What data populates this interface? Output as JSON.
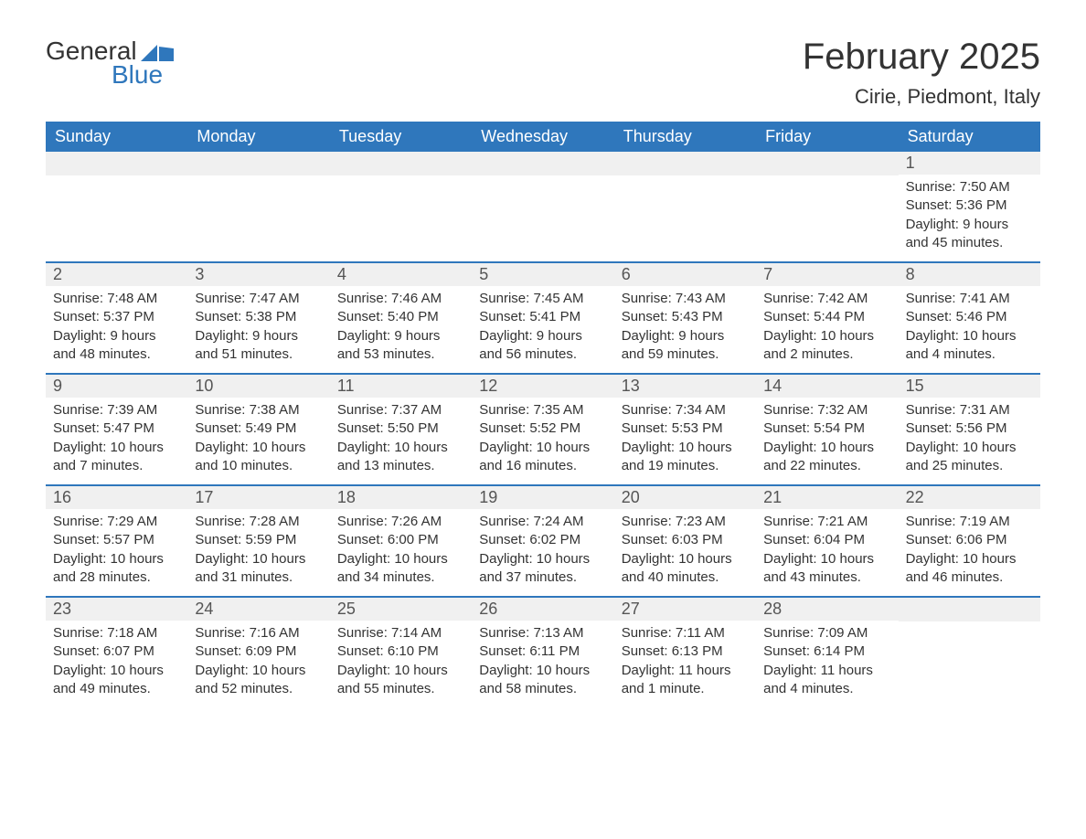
{
  "brand": {
    "text_general": "General",
    "text_blue": "Blue",
    "logo_color": "#2f77bc"
  },
  "title": "February 2025",
  "location": "Cirie, Piedmont, Italy",
  "colors": {
    "header_bg": "#2f77bc",
    "header_text": "#ffffff",
    "daynum_bg": "#f0f0f0",
    "text": "#333333",
    "border": "#2f77bc"
  },
  "day_names": [
    "Sunday",
    "Monday",
    "Tuesday",
    "Wednesday",
    "Thursday",
    "Friday",
    "Saturday"
  ],
  "weeks": [
    [
      null,
      null,
      null,
      null,
      null,
      null,
      {
        "n": "1",
        "sunrise": "7:50 AM",
        "sunset": "5:36 PM",
        "daylight": "9 hours and 45 minutes."
      }
    ],
    [
      {
        "n": "2",
        "sunrise": "7:48 AM",
        "sunset": "5:37 PM",
        "daylight": "9 hours and 48 minutes."
      },
      {
        "n": "3",
        "sunrise": "7:47 AM",
        "sunset": "5:38 PM",
        "daylight": "9 hours and 51 minutes."
      },
      {
        "n": "4",
        "sunrise": "7:46 AM",
        "sunset": "5:40 PM",
        "daylight": "9 hours and 53 minutes."
      },
      {
        "n": "5",
        "sunrise": "7:45 AM",
        "sunset": "5:41 PM",
        "daylight": "9 hours and 56 minutes."
      },
      {
        "n": "6",
        "sunrise": "7:43 AM",
        "sunset": "5:43 PM",
        "daylight": "9 hours and 59 minutes."
      },
      {
        "n": "7",
        "sunrise": "7:42 AM",
        "sunset": "5:44 PM",
        "daylight": "10 hours and 2 minutes."
      },
      {
        "n": "8",
        "sunrise": "7:41 AM",
        "sunset": "5:46 PM",
        "daylight": "10 hours and 4 minutes."
      }
    ],
    [
      {
        "n": "9",
        "sunrise": "7:39 AM",
        "sunset": "5:47 PM",
        "daylight": "10 hours and 7 minutes."
      },
      {
        "n": "10",
        "sunrise": "7:38 AM",
        "sunset": "5:49 PM",
        "daylight": "10 hours and 10 minutes."
      },
      {
        "n": "11",
        "sunrise": "7:37 AM",
        "sunset": "5:50 PM",
        "daylight": "10 hours and 13 minutes."
      },
      {
        "n": "12",
        "sunrise": "7:35 AM",
        "sunset": "5:52 PM",
        "daylight": "10 hours and 16 minutes."
      },
      {
        "n": "13",
        "sunrise": "7:34 AM",
        "sunset": "5:53 PM",
        "daylight": "10 hours and 19 minutes."
      },
      {
        "n": "14",
        "sunrise": "7:32 AM",
        "sunset": "5:54 PM",
        "daylight": "10 hours and 22 minutes."
      },
      {
        "n": "15",
        "sunrise": "7:31 AM",
        "sunset": "5:56 PM",
        "daylight": "10 hours and 25 minutes."
      }
    ],
    [
      {
        "n": "16",
        "sunrise": "7:29 AM",
        "sunset": "5:57 PM",
        "daylight": "10 hours and 28 minutes."
      },
      {
        "n": "17",
        "sunrise": "7:28 AM",
        "sunset": "5:59 PM",
        "daylight": "10 hours and 31 minutes."
      },
      {
        "n": "18",
        "sunrise": "7:26 AM",
        "sunset": "6:00 PM",
        "daylight": "10 hours and 34 minutes."
      },
      {
        "n": "19",
        "sunrise": "7:24 AM",
        "sunset": "6:02 PM",
        "daylight": "10 hours and 37 minutes."
      },
      {
        "n": "20",
        "sunrise": "7:23 AM",
        "sunset": "6:03 PM",
        "daylight": "10 hours and 40 minutes."
      },
      {
        "n": "21",
        "sunrise": "7:21 AM",
        "sunset": "6:04 PM",
        "daylight": "10 hours and 43 minutes."
      },
      {
        "n": "22",
        "sunrise": "7:19 AM",
        "sunset": "6:06 PM",
        "daylight": "10 hours and 46 minutes."
      }
    ],
    [
      {
        "n": "23",
        "sunrise": "7:18 AM",
        "sunset": "6:07 PM",
        "daylight": "10 hours and 49 minutes."
      },
      {
        "n": "24",
        "sunrise": "7:16 AM",
        "sunset": "6:09 PM",
        "daylight": "10 hours and 52 minutes."
      },
      {
        "n": "25",
        "sunrise": "7:14 AM",
        "sunset": "6:10 PM",
        "daylight": "10 hours and 55 minutes."
      },
      {
        "n": "26",
        "sunrise": "7:13 AM",
        "sunset": "6:11 PM",
        "daylight": "10 hours and 58 minutes."
      },
      {
        "n": "27",
        "sunrise": "7:11 AM",
        "sunset": "6:13 PM",
        "daylight": "11 hours and 1 minute."
      },
      {
        "n": "28",
        "sunrise": "7:09 AM",
        "sunset": "6:14 PM",
        "daylight": "11 hours and 4 minutes."
      },
      null
    ]
  ],
  "labels": {
    "sunrise": "Sunrise: ",
    "sunset": "Sunset: ",
    "daylight": "Daylight: "
  }
}
